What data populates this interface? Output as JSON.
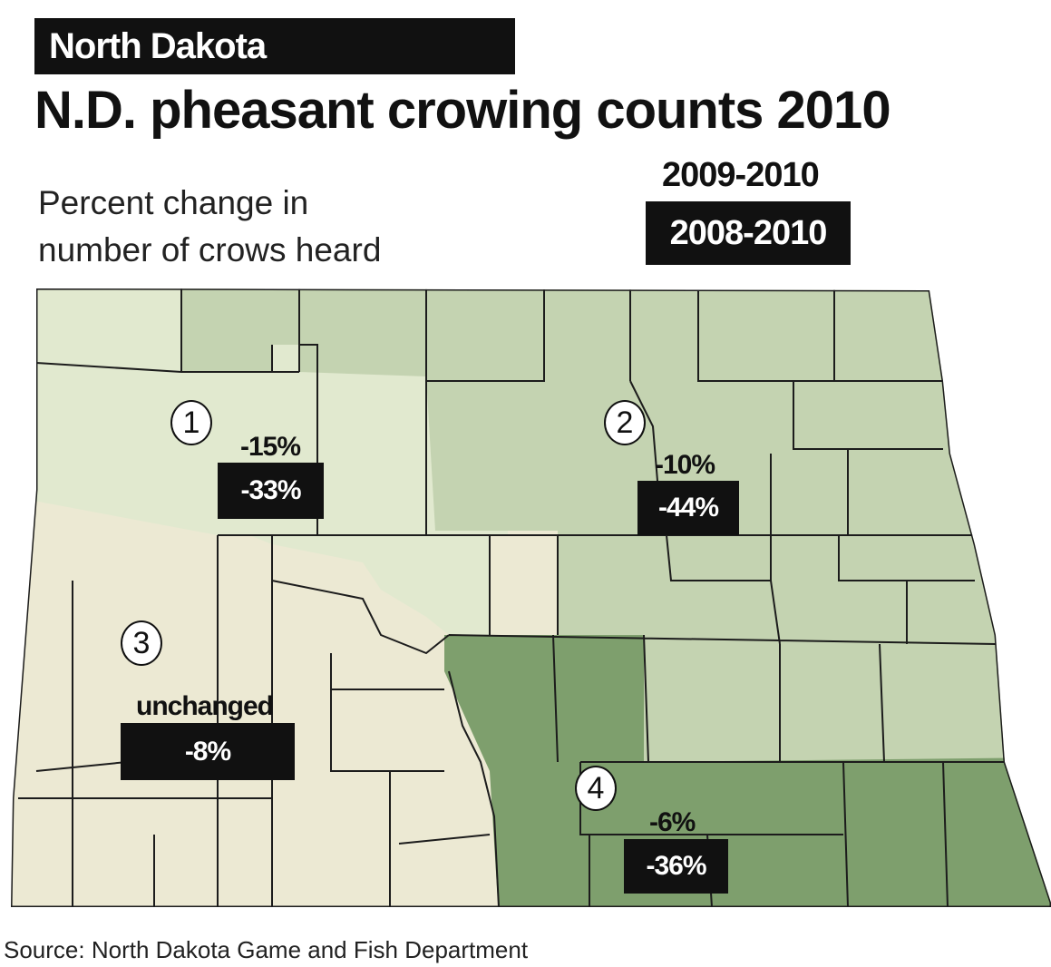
{
  "header": {
    "label": "North Dakota"
  },
  "title": "N.D. pheasant crowing counts 2010",
  "subtitle": [
    "Percent change in",
    "number of crows heard"
  ],
  "legend": {
    "period_1": "2009-2010",
    "period_2": "2008-2010"
  },
  "colors": {
    "district_1": "#e1e9cf",
    "district_2": "#c4d3b1",
    "district_3": "#ece9d3",
    "district_4": "#7e9f6d",
    "label_box": "#111111"
  },
  "districts": [
    {
      "number": "1",
      "change_2009_2010": "-15%",
      "change_2008_2010": "-33%"
    },
    {
      "number": "2",
      "change_2009_2010": "-10%",
      "change_2008_2010": "-44%"
    },
    {
      "number": "3",
      "change_2009_2010": "unchanged",
      "change_2008_2010": "-8%"
    },
    {
      "number": "4",
      "change_2009_2010": "-6%",
      "change_2008_2010": "-36%"
    }
  ],
  "source": "Source: North Dakota Game and Fish Department"
}
